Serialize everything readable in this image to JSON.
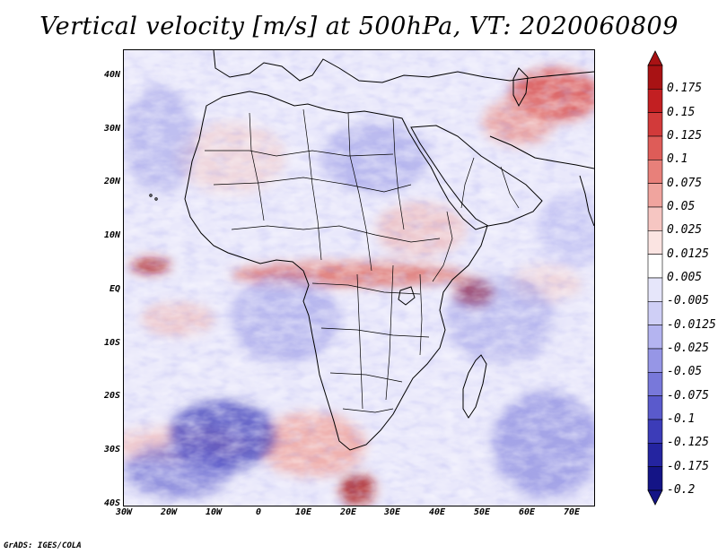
{
  "title": "Vertical velocity [m/s] at 500hPa, VT: 2020060809",
  "credit": "GrADS: IGES/COLA",
  "map": {
    "region": "Africa",
    "lat_range": [
      -40,
      45
    ],
    "lon_range": [
      -30,
      75
    ],
    "lat_ticks": [
      "40N",
      "30N",
      "20N",
      "10N",
      "EQ",
      "10S",
      "20S",
      "30S",
      "40S"
    ],
    "lon_ticks": [
      "30W",
      "20W",
      "10W",
      "0",
      "10E",
      "20E",
      "30E",
      "40E",
      "50E",
      "60E",
      "70E"
    ]
  },
  "colorbar": {
    "labels": [
      "0.175",
      "0.15",
      "0.125",
      "0.1",
      "0.075",
      "0.05",
      "0.025",
      "0.0125",
      "0.005",
      "-0.005",
      "-0.0125",
      "-0.025",
      "-0.05",
      "-0.075",
      "-0.1",
      "-0.125",
      "-0.175",
      "-0.2"
    ],
    "colors": [
      "#a81214",
      "#c21f22",
      "#d23a3a",
      "#de5c58",
      "#e8807a",
      "#f0a49e",
      "#f6c6c2",
      "#fbe4e2",
      "#ffffff",
      "#e6e6fa",
      "#cfcff6",
      "#b4b4f0",
      "#9696e6",
      "#7878da",
      "#5a5acc",
      "#3c3cb8",
      "#2424a0",
      "#141486"
    ]
  },
  "colors": {
    "ascent_strong": "#a81214",
    "descent_strong": "#141486",
    "coast": "#000000"
  }
}
